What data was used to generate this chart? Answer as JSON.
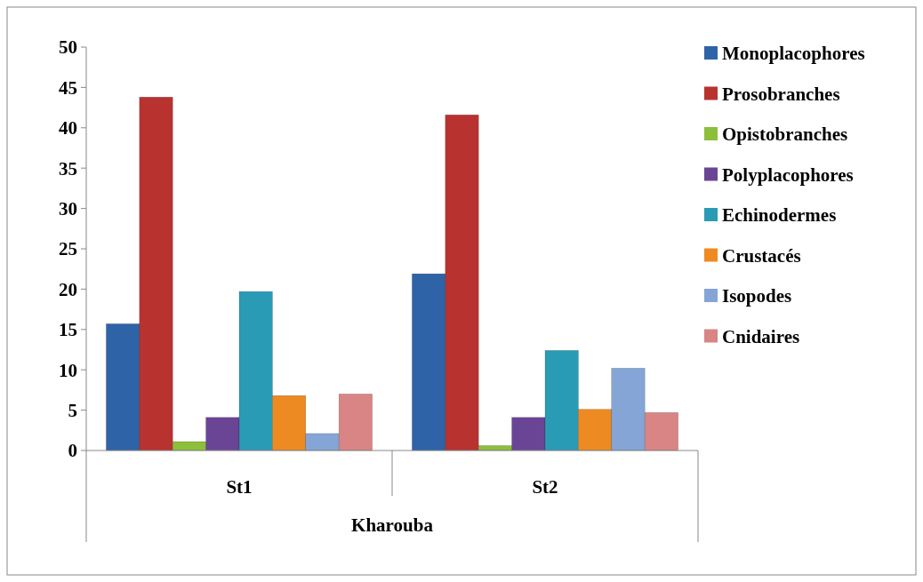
{
  "chart_data": {
    "type": "bar",
    "categories": [
      "St1",
      "St2"
    ],
    "xlabel": "Kharouba",
    "series": [
      {
        "name": "Monoplacophores",
        "color": "#2e63a8",
        "values": [
          15.7,
          21.9
        ]
      },
      {
        "name": "Prosobranches",
        "color": "#b83230",
        "values": [
          43.8,
          41.6
        ]
      },
      {
        "name": "Opistobranches",
        "color": "#8cbf3a",
        "values": [
          1.1,
          0.6
        ]
      },
      {
        "name": "Polyplacophores",
        "color": "#6a4596",
        "values": [
          4.1,
          4.1
        ]
      },
      {
        "name": "Echinodermes",
        "color": "#2a9bb5",
        "values": [
          19.7,
          12.4
        ]
      },
      {
        "name": "Crustacés",
        "color": "#ee8a22",
        "values": [
          6.8,
          5.1
        ]
      },
      {
        "name": "Isopodes",
        "color": "#84a5d6",
        "values": [
          2.1,
          10.2
        ]
      },
      {
        "name": "Cnidaires",
        "color": "#d98585",
        "values": [
          7.0,
          4.7
        ]
      }
    ],
    "ylim": [
      0,
      50
    ],
    "yticks": [
      0,
      5,
      10,
      15,
      20,
      25,
      30,
      35,
      40,
      45,
      50
    ],
    "grid": false,
    "legend": "right"
  }
}
